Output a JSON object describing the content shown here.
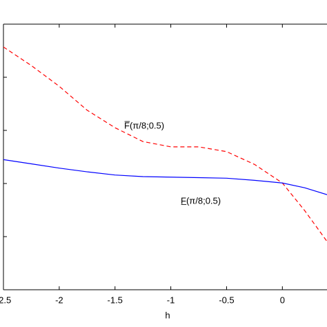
{
  "chart_data": {
    "type": "line",
    "xlabel": "h",
    "x": [
      -2.5,
      -2.25,
      -2,
      -1.75,
      -1.5,
      -1.25,
      -1,
      -0.75,
      -0.5,
      -0.25,
      0,
      0.2,
      0.4
    ],
    "series": [
      {
        "name": "F̅(π/8;0.5)",
        "color": "#ff0000",
        "dash": true,
        "values": [
          4.57,
          4.22,
          3.83,
          3.38,
          3.05,
          2.79,
          2.69,
          2.69,
          2.6,
          2.36,
          2.01,
          1.49,
          0.91
        ]
      },
      {
        "name": "F̲(π/8;0.5)",
        "color": "#0000ff",
        "dash": false,
        "values": [
          2.45,
          2.37,
          2.29,
          2.22,
          2.16,
          2.13,
          2.12,
          2.11,
          2.1,
          2.06,
          2.01,
          1.92,
          1.79
        ]
      }
    ],
    "xlim": [
      -2.5,
      0.4
    ],
    "ylim": [
      0,
      5
    ],
    "xticks": [
      -2.5,
      -2,
      -1.5,
      -1,
      -0.5,
      0
    ],
    "yticks": [
      0,
      1,
      2,
      3,
      4,
      5
    ],
    "ytick_labels": false
  }
}
